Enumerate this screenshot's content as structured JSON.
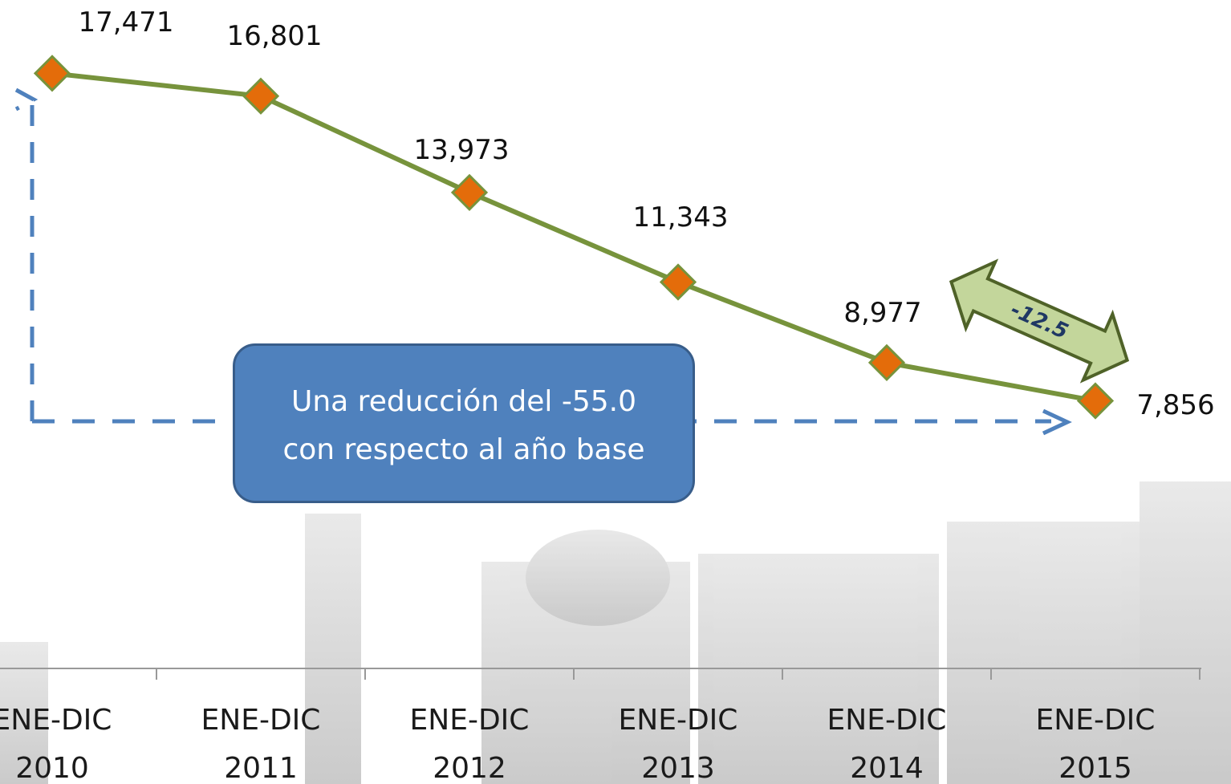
{
  "chart_data": {
    "type": "line",
    "categories": [
      "ENE-DIC 2010",
      "ENE-DIC 2011",
      "ENE-DIC 2012",
      "ENE-DIC 2013",
      "ENE-DIC 2014",
      "ENE-DIC 2015"
    ],
    "values": [
      17471,
      16801,
      13973,
      11343,
      8977,
      7856
    ],
    "value_labels": [
      "17,471",
      "16,801",
      "13,973",
      "11,343",
      "8,977",
      "7,856"
    ],
    "color": "#77933c",
    "marker_color": "#e46c0a",
    "ylim": [
      0,
      20000
    ],
    "annotations": [
      "Una reducción del  -55.0\ncon respecto al año base",
      "-12.5"
    ]
  }
}
